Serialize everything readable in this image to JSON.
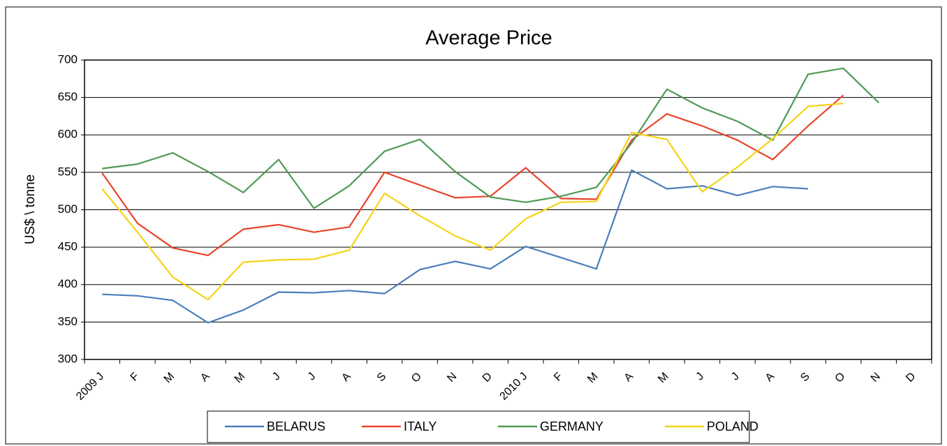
{
  "chart_data": {
    "type": "line",
    "title": "Average Price",
    "y_label": "US$ \\ tonne",
    "categories": [
      "2009 J",
      "F",
      "M",
      "A",
      "M",
      "J",
      "J",
      "A",
      "S",
      "O",
      "N",
      "D",
      "2010 J",
      "F",
      "M",
      "A",
      "M",
      "J",
      "J",
      "A",
      "S",
      "O",
      "N",
      "D"
    ],
    "series": [
      {
        "name": "BELARUS",
        "color": "#4a7ebb",
        "values": [
          387,
          385,
          379,
          349,
          366,
          390,
          389,
          392,
          388,
          420,
          431,
          421,
          451,
          436,
          421,
          553,
          528,
          532,
          519,
          531,
          528,
          null,
          null,
          null
        ]
      },
      {
        "name": "ITALY",
        "color": "#e8442a",
        "values": [
          549,
          482,
          449,
          439,
          474,
          480,
          470,
          477,
          550,
          533,
          516,
          518,
          556,
          515,
          514,
          593,
          628,
          612,
          593,
          567,
          612,
          653,
          null,
          null
        ]
      },
      {
        "name": "GERMANY",
        "color": "#4e9a54",
        "values": [
          555,
          561,
          576,
          551,
          523,
          567,
          502,
          532,
          578,
          594,
          551,
          517,
          510,
          518,
          530,
          589,
          661,
          636,
          618,
          593,
          681,
          689,
          643,
          null
        ]
      },
      {
        "name": "POLAND",
        "color": "#f5d315",
        "values": [
          528,
          470,
          410,
          380,
          430,
          433,
          434,
          446,
          522,
          492,
          465,
          446,
          488,
          510,
          511,
          603,
          594,
          524,
          557,
          595,
          638,
          642,
          null,
          null
        ]
      }
    ],
    "ylim": [
      300,
      700
    ],
    "yticks": [
      300,
      350,
      400,
      450,
      500,
      550,
      600,
      650,
      700
    ],
    "grid": true,
    "legend": "bottom"
  }
}
